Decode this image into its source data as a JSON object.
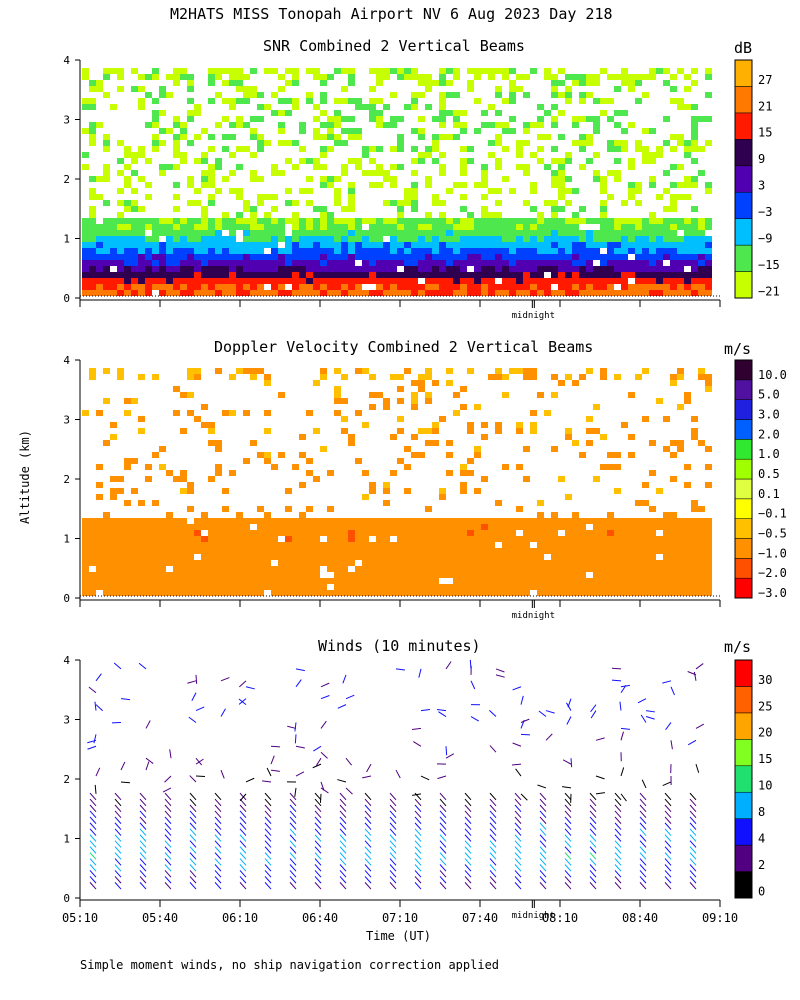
{
  "figure": {
    "title": "M2HATS MISS Tonopah Airport NV   6 Aug 2023 Day 218",
    "ylabel": "Altitude (km)",
    "xlabel": "Time (UT)",
    "footnote": "Simple moment winds, no ship navigation correction applied",
    "midnight_label": "midnight",
    "x_ticks": [
      "05:10",
      "05:40",
      "06:10",
      "06:40",
      "07:10",
      "07:40",
      "08:10",
      "08:40",
      "09:10"
    ],
    "y_ticks": [
      "0",
      "1",
      "2",
      "3",
      "4"
    ]
  },
  "chart_data": [
    {
      "type": "heatmap",
      "title": "SNR Combined 2 Vertical Beams",
      "unit": "dB",
      "xlim": [
        "05:10",
        "09:10"
      ],
      "ylim": [
        0,
        4
      ],
      "colorbar_ticks": [
        "27",
        "21",
        "15",
        "9",
        "3",
        "−3",
        "−9",
        "−15",
        "−21"
      ],
      "colors": [
        "#c8ff00",
        "#4ee84e",
        "#00bfff",
        "#0040ff",
        "#5000b0",
        "#300050",
        "#ff1a00",
        "#ff7800",
        "#ffb000"
      ],
      "profile": [
        {
          "y": 0.1,
          "value": 18
        },
        {
          "y": 0.3,
          "value": 15
        },
        {
          "y": 0.5,
          "value": 6
        },
        {
          "y": 0.7,
          "value": 0
        },
        {
          "y": 0.9,
          "value": -6
        },
        {
          "y": 1.1,
          "value": -12
        },
        {
          "y": 1.3,
          "value": -15
        },
        {
          "y": 1.8,
          "value": -18
        },
        {
          "y": 3.2,
          "value": -15
        },
        {
          "y": 3.9,
          "value": -18
        }
      ]
    },
    {
      "type": "heatmap",
      "title": "Doppler Velocity Combined 2 Vertical Beams",
      "unit": "m/s",
      "xlim": [
        "05:10",
        "09:10"
      ],
      "ylim": [
        0,
        4
      ],
      "colorbar_ticks": [
        "10.0",
        "5.0",
        "3.0",
        "2.0",
        "1.0",
        "0.5",
        "0.1",
        "−0.1",
        "−0.5",
        "−1.0",
        "−2.0",
        "−3.0"
      ],
      "colors": [
        "#ff0000",
        "#ff5000",
        "#ff9000",
        "#ffc000",
        "#ffff00",
        "#e0ff40",
        "#a0ff00",
        "#30e830",
        "#0060ff",
        "#2020e0",
        "#5010a0",
        "#300030"
      ],
      "profile": [
        {
          "y": 0.5,
          "value": -0.3
        },
        {
          "y": 1.2,
          "value": -0.5
        },
        {
          "y": 1.8,
          "value": 0.1
        },
        {
          "y": 2.4,
          "value": -0.1
        },
        {
          "y": 3.2,
          "value": 0.1
        },
        {
          "y": 3.9,
          "value": 0.3
        }
      ]
    },
    {
      "type": "scatter",
      "title": "Winds (10 minutes)",
      "unit": "m/s",
      "xlim": [
        "05:10",
        "09:10"
      ],
      "ylim": [
        0,
        4
      ],
      "colorbar_ticks": [
        "30",
        "25",
        "20",
        "15",
        "10",
        "8",
        "4",
        "2",
        "0"
      ],
      "colors": [
        "#000000",
        "#500080",
        "#1010ff",
        "#00b0ff",
        "#20e070",
        "#80ff20",
        "#ffa500",
        "#ff6000",
        "#ff0000"
      ],
      "wind_profile": [
        {
          "y": 0.2,
          "speed": 6
        },
        {
          "y": 0.6,
          "speed": 12
        },
        {
          "y": 1.0,
          "speed": 10
        },
        {
          "y": 1.4,
          "speed": 6
        },
        {
          "y": 1.8,
          "speed": 2
        },
        {
          "y": 2.4,
          "speed": 6
        },
        {
          "y": 3.2,
          "speed": 8
        },
        {
          "y": 3.8,
          "speed": 6
        }
      ]
    }
  ]
}
